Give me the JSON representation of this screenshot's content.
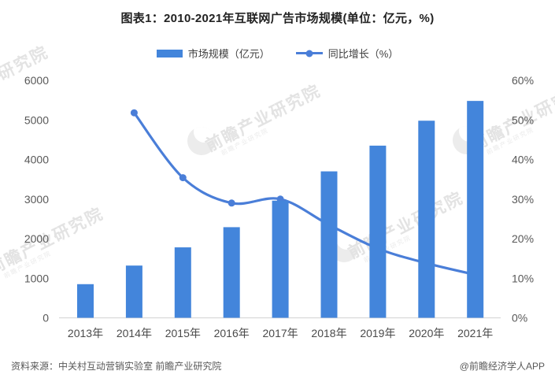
{
  "title": "图表1：2010-2021年互联网广告市场规模(单位：亿元，%)",
  "legend": {
    "bar_label": "市场规模（亿元）",
    "line_label": "同比增长（%）"
  },
  "footer": {
    "source": "资料来源：中关村互动营销实验室 前瞻产业研究院",
    "credit": "@前瞻经济学人APP"
  },
  "watermark": {
    "text": "前瞻产业研究院",
    "logo_icon": "qianzhan-logo-icon"
  },
  "colors": {
    "bar": "#4385DB",
    "line": "#4A7ED8",
    "axis_line": "#d9d9d9",
    "tick_text": "#595959"
  },
  "chart_data": {
    "type": "bar",
    "subtype": "bar+line combo",
    "title": "图表1：2010-2021年互联网广告市场规模(单位：亿元，%)",
    "categories": [
      "2013年",
      "2014年",
      "2015年",
      "2016年",
      "2017年",
      "2018年",
      "2019年",
      "2020年",
      "2021年"
    ],
    "series": [
      {
        "name": "市场规模（亿元）",
        "type": "bar",
        "axis": "left",
        "color": "#4385DB",
        "values": [
          850,
          1320,
          1780,
          2290,
          2960,
          3700,
          4350,
          4980,
          5480
        ]
      },
      {
        "name": "同比增长（%）",
        "type": "line",
        "axis": "right",
        "color": "#4A7ED8",
        "values": [
          null,
          51.8,
          35.4,
          29.0,
          30.0,
          23.5,
          17.5,
          13.8,
          10.9
        ]
      }
    ],
    "left_axis": {
      "min": 0,
      "max": 6000,
      "step": 1000,
      "tick_labels": [
        "0",
        "1000",
        "2000",
        "3000",
        "4000",
        "5000",
        "6000"
      ]
    },
    "right_axis": {
      "min": 0,
      "max": 60,
      "step": 10,
      "tick_labels": [
        "0%",
        "10%",
        "20%",
        "30%",
        "40%",
        "50%",
        "60%"
      ]
    },
    "grid": false,
    "legend_position": "top",
    "xlabel": "",
    "ylabel_left": "亿元",
    "ylabel_right": "%"
  }
}
